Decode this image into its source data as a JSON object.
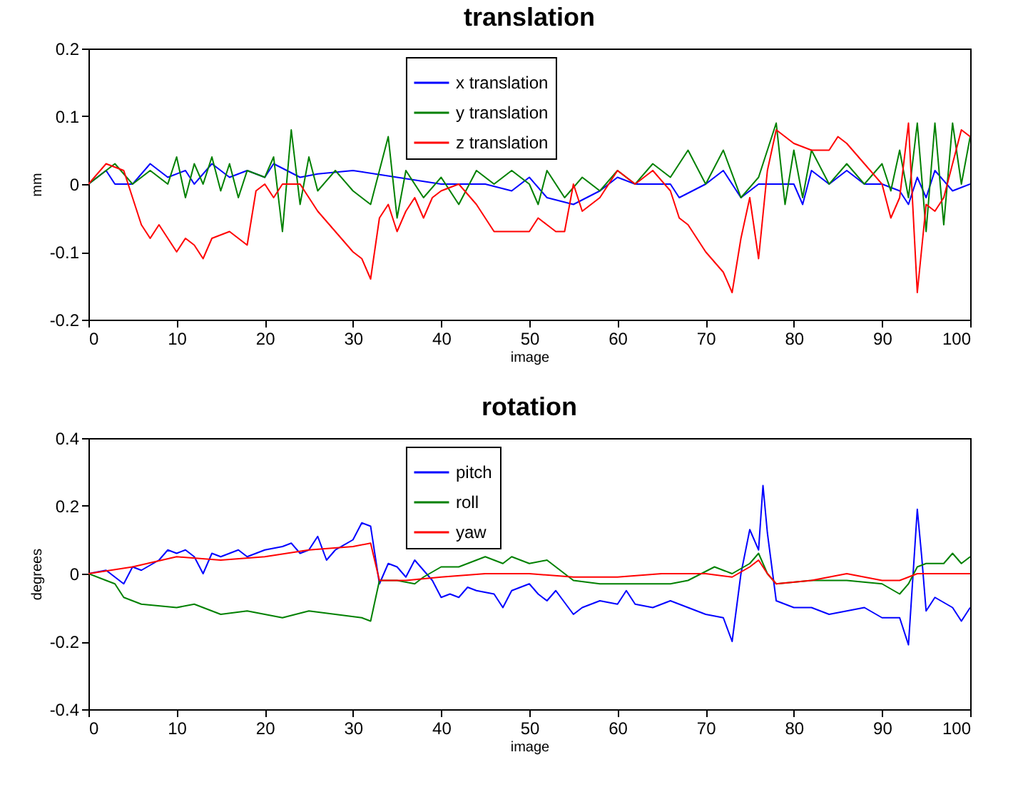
{
  "chart_data": [
    {
      "type": "line",
      "title": "translation",
      "xlabel": "image",
      "ylabel": "mm",
      "xlim": [
        0,
        100
      ],
      "ylim": [
        -0.2,
        0.2
      ],
      "xticks": [
        0,
        10,
        20,
        30,
        40,
        50,
        60,
        70,
        80,
        90,
        100
      ],
      "yticks": [
        -0.2,
        -0.1,
        0,
        0.1,
        0.2
      ],
      "grid": false,
      "legend": "top",
      "series": [
        {
          "name": "x translation",
          "color": "#0000ff",
          "x": [
            0,
            2,
            3,
            5,
            7,
            9,
            11,
            12,
            14,
            16,
            18,
            20,
            21,
            24,
            26,
            30,
            35,
            40,
            45,
            48,
            50,
            52,
            55,
            58,
            60,
            62,
            64,
            66,
            67,
            70,
            72,
            74,
            76,
            78,
            80,
            81,
            82,
            84,
            86,
            88,
            90,
            92,
            93,
            94,
            95,
            96,
            98,
            100
          ],
          "values": [
            0,
            0.02,
            0,
            0,
            0.03,
            0.01,
            0.02,
            0,
            0.03,
            0.01,
            0.02,
            0.01,
            0.03,
            0.01,
            0.015,
            0.02,
            0.01,
            0,
            0,
            -0.01,
            0.01,
            -0.02,
            -0.03,
            -0.01,
            0.01,
            0,
            0,
            0,
            -0.02,
            0,
            0.02,
            -0.02,
            0,
            0,
            0,
            -0.03,
            0.02,
            0,
            0.02,
            0,
            0,
            -0.01,
            -0.03,
            0.01,
            -0.02,
            0.02,
            -0.01,
            0
          ]
        },
        {
          "name": "y translation",
          "color": "#008000",
          "x": [
            0,
            3,
            5,
            7,
            9,
            10,
            11,
            12,
            13,
            14,
            15,
            16,
            17,
            18,
            20,
            21,
            22,
            23,
            24,
            25,
            26,
            28,
            30,
            32,
            34,
            35,
            36,
            38,
            40,
            42,
            44,
            46,
            48,
            50,
            51,
            52,
            54,
            56,
            58,
            60,
            62,
            64,
            66,
            68,
            70,
            72,
            74,
            76,
            78,
            79,
            80,
            81,
            82,
            84,
            86,
            88,
            90,
            91,
            92,
            93,
            94,
            95,
            96,
            97,
            98,
            99,
            100
          ],
          "values": [
            0,
            0.03,
            0,
            0.02,
            0,
            0.04,
            -0.02,
            0.03,
            0,
            0.04,
            -0.01,
            0.03,
            -0.02,
            0.02,
            0.01,
            0.04,
            -0.07,
            0.08,
            -0.03,
            0.04,
            -0.01,
            0.02,
            -0.01,
            -0.03,
            0.07,
            -0.05,
            0.02,
            -0.02,
            0.01,
            -0.03,
            0.02,
            0,
            0.02,
            0,
            -0.03,
            0.02,
            -0.02,
            0.01,
            -0.01,
            0.02,
            0,
            0.03,
            0.01,
            0.05,
            0,
            0.05,
            -0.02,
            0.01,
            0.09,
            -0.03,
            0.05,
            -0.02,
            0.05,
            0,
            0.03,
            0,
            0.03,
            -0.01,
            0.05,
            -0.02,
            0.09,
            -0.07,
            0.09,
            -0.06,
            0.09,
            0,
            0.07
          ]
        },
        {
          "name": "z translation",
          "color": "#ff0000",
          "x": [
            0,
            2,
            4,
            5,
            6,
            7,
            8,
            10,
            11,
            12,
            13,
            14,
            16,
            18,
            19,
            20,
            21,
            22,
            24,
            26,
            28,
            30,
            31,
            32,
            33,
            34,
            35,
            36,
            37,
            38,
            39,
            40,
            42,
            44,
            46,
            48,
            50,
            51,
            52,
            53,
            54,
            55,
            56,
            58,
            59,
            60,
            62,
            63,
            64,
            66,
            67,
            68,
            70,
            72,
            73,
            74,
            75,
            76,
            77,
            78,
            80,
            82,
            84,
            85,
            86,
            88,
            90,
            91,
            92,
            93,
            94,
            95,
            96,
            97,
            98,
            99,
            100
          ],
          "values": [
            0,
            0.03,
            0.02,
            -0.02,
            -0.06,
            -0.08,
            -0.06,
            -0.1,
            -0.08,
            -0.09,
            -0.11,
            -0.08,
            -0.07,
            -0.09,
            -0.01,
            0,
            -0.02,
            0,
            0,
            -0.04,
            -0.07,
            -0.1,
            -0.11,
            -0.14,
            -0.05,
            -0.03,
            -0.07,
            -0.04,
            -0.02,
            -0.05,
            -0.02,
            -0.01,
            0,
            -0.03,
            -0.07,
            -0.07,
            -0.07,
            -0.05,
            -0.06,
            -0.07,
            -0.07,
            0,
            -0.04,
            -0.02,
            0,
            0.02,
            0,
            0.01,
            0.02,
            -0.01,
            -0.05,
            -0.06,
            -0.1,
            -0.13,
            -0.16,
            -0.08,
            -0.02,
            -0.11,
            0.02,
            0.08,
            0.06,
            0.05,
            0.05,
            0.07,
            0.06,
            0.03,
            0,
            -0.05,
            -0.02,
            0.09,
            -0.16,
            -0.03,
            -0.04,
            -0.02,
            0.03,
            0.08,
            0.07
          ]
        }
      ]
    },
    {
      "type": "line",
      "title": "rotation",
      "xlabel": "image",
      "ylabel": "degrees",
      "xlim": [
        0,
        100
      ],
      "ylim": [
        -0.4,
        0.4
      ],
      "xticks": [
        0,
        10,
        20,
        30,
        40,
        50,
        60,
        70,
        80,
        90,
        100
      ],
      "yticks": [
        -0.4,
        -0.2,
        0,
        0.2,
        0.4
      ],
      "grid": false,
      "legend": "top",
      "series": [
        {
          "name": "pitch",
          "color": "#0000ff",
          "x": [
            0,
            2,
            4,
            5,
            6,
            8,
            9,
            10,
            11,
            12,
            13,
            14,
            15,
            17,
            18,
            20,
            22,
            23,
            24,
            25,
            26,
            27,
            28,
            30,
            31,
            32,
            33,
            34,
            35,
            36,
            37,
            38,
            39,
            40,
            41,
            42,
            43,
            44,
            46,
            47,
            48,
            50,
            51,
            52,
            53,
            55,
            56,
            58,
            60,
            61,
            62,
            64,
            66,
            68,
            70,
            72,
            73,
            74,
            75,
            76,
            76.5,
            77,
            78,
            80,
            82,
            84,
            86,
            88,
            90,
            92,
            93,
            94,
            94.5,
            95,
            96,
            98,
            99,
            100
          ],
          "values": [
            0,
            0.01,
            -0.03,
            0.02,
            0.01,
            0.04,
            0.07,
            0.06,
            0.07,
            0.05,
            0,
            0.06,
            0.05,
            0.07,
            0.05,
            0.07,
            0.08,
            0.09,
            0.06,
            0.07,
            0.11,
            0.04,
            0.07,
            0.1,
            0.15,
            0.14,
            -0.03,
            0.03,
            0.02,
            -0.01,
            0.04,
            0.01,
            -0.02,
            -0.07,
            -0.06,
            -0.07,
            -0.04,
            -0.05,
            -0.06,
            -0.1,
            -0.05,
            -0.03,
            -0.06,
            -0.08,
            -0.05,
            -0.12,
            -0.1,
            -0.08,
            -0.09,
            -0.05,
            -0.09,
            -0.1,
            -0.08,
            -0.1,
            -0.12,
            -0.13,
            -0.2,
            0,
            0.13,
            0.07,
            0.26,
            0.12,
            -0.08,
            -0.1,
            -0.1,
            -0.12,
            -0.11,
            -0.1,
            -0.13,
            -0.13,
            -0.21,
            0.19,
            0.05,
            -0.11,
            -0.07,
            -0.1,
            -0.14,
            -0.1
          ]
        },
        {
          "name": "roll",
          "color": "#008000",
          "x": [
            0,
            2,
            3,
            4,
            6,
            10,
            12,
            15,
            18,
            22,
            25,
            28,
            31,
            32,
            33,
            35,
            37,
            38,
            40,
            42,
            45,
            47,
            48,
            50,
            52,
            55,
            58,
            62,
            66,
            68,
            71,
            73,
            75,
            76,
            77,
            78,
            82,
            86,
            90,
            92,
            93,
            94,
            95,
            97,
            98,
            99,
            100
          ],
          "values": [
            0,
            -0.02,
            -0.03,
            -0.07,
            -0.09,
            -0.1,
            -0.09,
            -0.12,
            -0.11,
            -0.13,
            -0.11,
            -0.12,
            -0.13,
            -0.14,
            -0.02,
            -0.02,
            -0.03,
            -0.01,
            0.02,
            0.02,
            0.05,
            0.03,
            0.05,
            0.03,
            0.04,
            -0.02,
            -0.03,
            -0.03,
            -0.03,
            -0.02,
            0.02,
            0,
            0.03,
            0.06,
            0,
            -0.03,
            -0.02,
            -0.02,
            -0.03,
            -0.06,
            -0.03,
            0.02,
            0.03,
            0.03,
            0.06,
            0.03,
            0.05
          ]
        },
        {
          "name": "yaw",
          "color": "#ff0000",
          "x": [
            0,
            5,
            10,
            15,
            20,
            25,
            30,
            32,
            33,
            36,
            40,
            45,
            50,
            55,
            60,
            65,
            70,
            73,
            75,
            76,
            77,
            78,
            82,
            86,
            90,
            92,
            93,
            94,
            96,
            100
          ],
          "values": [
            0,
            0.02,
            0.05,
            0.04,
            0.05,
            0.07,
            0.08,
            0.09,
            -0.02,
            -0.02,
            -0.01,
            0,
            0,
            -0.01,
            -0.01,
            0,
            0,
            -0.01,
            0.02,
            0.04,
            0,
            -0.03,
            -0.02,
            0,
            -0.02,
            -0.02,
            -0.01,
            0,
            0,
            0
          ]
        }
      ]
    }
  ]
}
